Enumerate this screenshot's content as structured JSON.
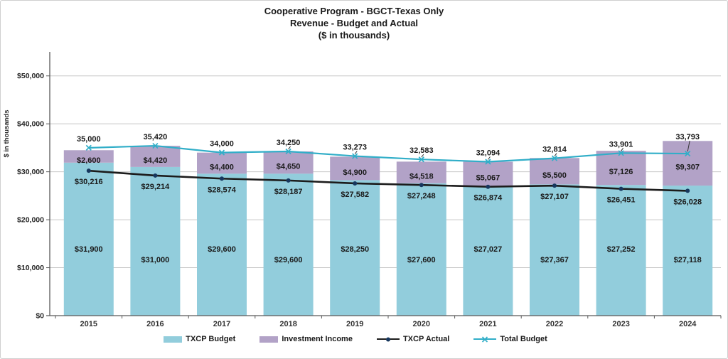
{
  "title": {
    "line1": "Cooperative Program - BGCT-Texas Only",
    "line2": "Revenue - Budget and Actual",
    "line3": "($ in thousands)"
  },
  "y_axis": {
    "title": "$ in thousands",
    "ticks": [
      {
        "value": 0,
        "label": "$0"
      },
      {
        "value": 10000,
        "label": "$10,000"
      },
      {
        "value": 20000,
        "label": "$20,000"
      },
      {
        "value": 30000,
        "label": "$30,000"
      },
      {
        "value": 40000,
        "label": "$40,000"
      },
      {
        "value": 50000,
        "label": "$50,000"
      }
    ]
  },
  "chart_data": {
    "type": "bar",
    "subtype": "stacked-bars-with-lines",
    "title": "Cooperative Program - BGCT-Texas Only Revenue - Budget and Actual ($ in thousands)",
    "xlabel": "",
    "ylabel": "$ in thousands",
    "ylim": [
      0,
      55000
    ],
    "grid": true,
    "legend_position": "bottom",
    "categories": [
      "2015",
      "2016",
      "2017",
      "2018",
      "2019",
      "2020",
      "2021",
      "2022",
      "2023",
      "2024"
    ],
    "series": [
      {
        "name": "TXCP Budget",
        "type": "bar-stacked",
        "color": "#92CDDC",
        "values": [
          31900,
          31000,
          29600,
          29600,
          28250,
          27600,
          27027,
          27367,
          27252,
          27118
        ],
        "labels": [
          "$31,900",
          "$31,000",
          "$29,600",
          "$29,600",
          "$28,250",
          "$27,600",
          "$27,027",
          "$27,367",
          "$27,252",
          "$27,118"
        ]
      },
      {
        "name": "Investment Income",
        "type": "bar-stacked",
        "color": "#B2A2C7",
        "values": [
          2600,
          4420,
          4400,
          4650,
          4900,
          4518,
          5067,
          5500,
          7126,
          9307
        ],
        "labels": [
          "$2,600",
          "$4,420",
          "$4,400",
          "$4,650",
          "$4,900",
          "$4,518",
          "$5,067",
          "$5,500",
          "$7,126",
          "$9,307"
        ]
      },
      {
        "name": "TXCP Actual",
        "type": "line",
        "color": "#1C1C1C",
        "marker": "dot",
        "marker_color": "#17375E",
        "values": [
          30216,
          29214,
          28574,
          28187,
          27582,
          27248,
          26874,
          27107,
          26451,
          26028
        ],
        "labels": [
          "$30,216",
          "$29,214",
          "$28,574",
          "$28,187",
          "$27,582",
          "$27,248",
          "$26,874",
          "$27,107",
          "$26,451",
          "$26,028"
        ]
      },
      {
        "name": "Total Budget",
        "type": "line",
        "color": "#31AEC8",
        "marker": "x",
        "marker_color": "#31AEC8",
        "values": [
          35000,
          35420,
          34000,
          34250,
          33273,
          32583,
          32094,
          32814,
          33901,
          33793
        ],
        "labels": [
          "35,000",
          "35,420",
          "34,000",
          "34,250",
          "33,273",
          "32,583",
          "32,094",
          "32,814",
          "33,901",
          "33,793"
        ],
        "label_callout_indices": [
          3,
          4,
          5,
          6,
          7,
          8,
          9
        ]
      }
    ]
  },
  "legend": {
    "items": [
      {
        "label": "TXCP Budget",
        "swatch": "bar",
        "color": "#92CDDC"
      },
      {
        "label": "Investment Income",
        "swatch": "bar",
        "color": "#B2A2C7"
      },
      {
        "label": "TXCP Actual",
        "swatch": "line-dot",
        "color": "#1C1C1C",
        "marker_color": "#17375E"
      },
      {
        "label": "Total Budget",
        "swatch": "line-x",
        "color": "#31AEC8",
        "marker_color": "#31AEC8"
      }
    ]
  },
  "colors": {
    "gridline": "#C6C6C6",
    "axis": "#595959",
    "label_text": "#1a1a1a",
    "tick_text": "#262626"
  }
}
